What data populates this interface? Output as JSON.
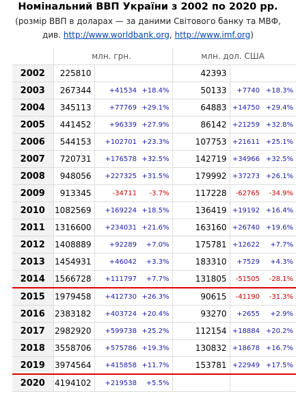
{
  "header": {
    "title": "Номінальний ВВП України з 2002 по 2020 рр.",
    "subtitle": "(розмір ВВП в доларах — за даними Світового банку та МВФ,",
    "note": {
      "prefix": "див.",
      "links": [
        "http://www.worldbank.org",
        "http://www.imf.org"
      ],
      "separator": ",",
      "suffix": ")"
    }
  },
  "table": {
    "groups": [
      "млн. грн.",
      "млн. дол. США"
    ],
    "rows": [
      [
        "2002",
        "225810",
        null,
        null,
        "42393",
        null,
        null
      ],
      [
        "2003",
        "267344",
        "+41534",
        "+18.4%",
        "50133",
        "+7740",
        "+18.3%"
      ],
      [
        "2004",
        "345113",
        "+77769",
        "+29.1%",
        "64883",
        "+14750",
        "+29.4%"
      ],
      [
        "2005",
        "441452",
        "+96339",
        "+27.9%",
        "86142",
        "+21259",
        "+32.8%"
      ],
      [
        "2006",
        "544153",
        "+102701",
        "+23.3%",
        "107753",
        "+21611",
        "+25.1%"
      ],
      [
        "2007",
        "720731",
        "+176578",
        "+32.5%",
        "142719",
        "+34966",
        "+32.5%"
      ],
      [
        "2008",
        "948056",
        "+227325",
        "+31.5%",
        "179992",
        "+37273",
        "+26.1%"
      ],
      [
        "2009",
        "913345",
        "-34711",
        "-3.7%",
        "117228",
        "-62765",
        "-34.9%"
      ],
      [
        "2010",
        "1082569",
        "+169224",
        "+18.5%",
        "136419",
        "+19192",
        "+16.4%"
      ],
      [
        "2011",
        "1316600",
        "+234031",
        "+21.6%",
        "163160",
        "+26740",
        "+19.6%"
      ],
      [
        "2012",
        "1408889",
        "+92289",
        "+7.0%",
        "175781",
        "+12622",
        "+7.7%"
      ],
      [
        "2013",
        "1454931",
        "+46042",
        "+3.3%",
        "183310",
        "+7529",
        "+4.3%"
      ],
      [
        "2014",
        "1566728",
        "+111797",
        "+7.7%",
        "131805",
        "-51505",
        "-28.1%"
      ],
      [
        "2015",
        "1979458",
        "+412730",
        "+26.3%",
        "90615",
        "-41190",
        "-31.3%"
      ],
      [
        "2016",
        "2383182",
        "+403724",
        "+20.4%",
        "93270",
        "+2655",
        "+2.9%"
      ],
      [
        "2017",
        "2982920",
        "+599738",
        "+25.2%",
        "112154",
        "+18884",
        "+20.2%"
      ],
      [
        "2018",
        "3558706",
        "+575786",
        "+19.3%",
        "130832",
        "+18678",
        "+16.7%"
      ],
      [
        "2019",
        "3974564",
        "+415858",
        "+11.7%",
        "153781",
        "+22949",
        "+17.5%"
      ],
      [
        "2020",
        "4194102",
        "+219538",
        "+5.5%",
        null,
        null,
        null
      ]
    ]
  }
}
